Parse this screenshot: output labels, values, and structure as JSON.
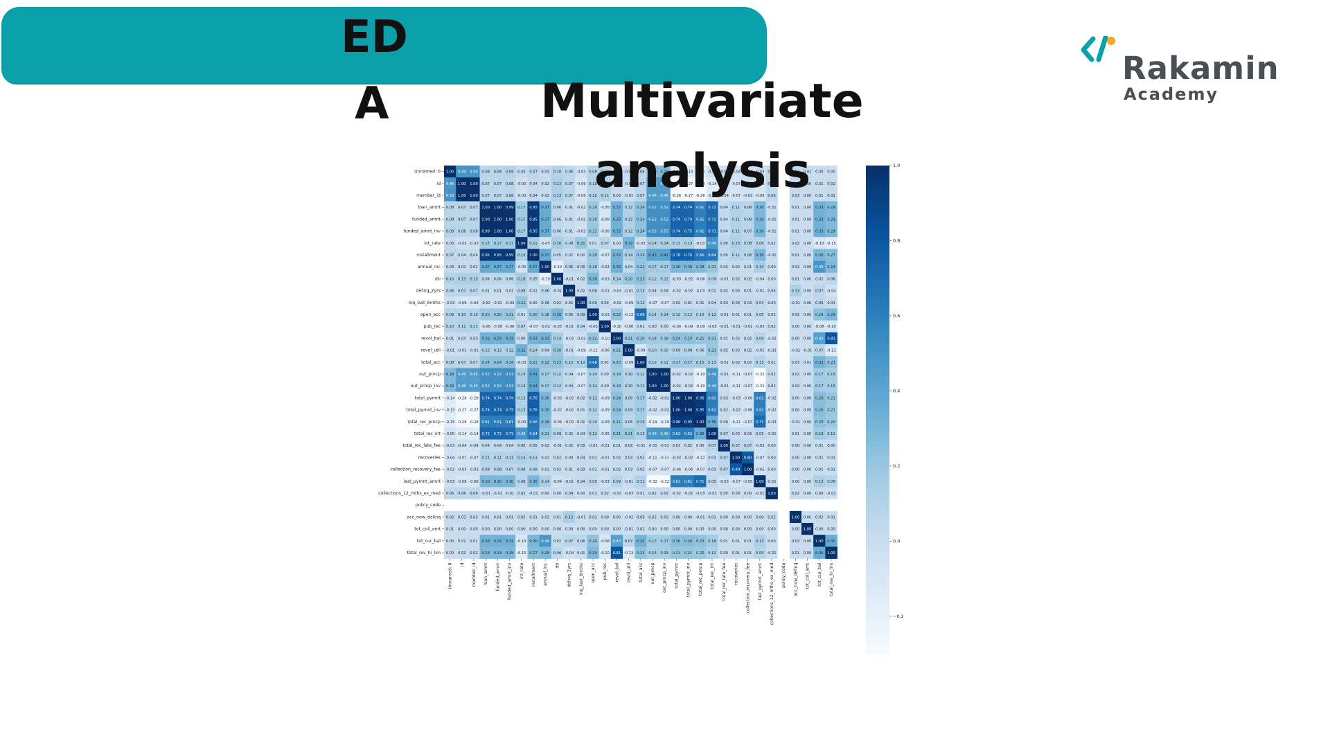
{
  "slide": {
    "title_ed": "ED",
    "title_a": "A",
    "title_multivariate": "Multivariate",
    "title_analysis": "analysis",
    "brand_color": "#0a9fa9"
  },
  "logo": {
    "name": "Rakamin",
    "sub": "Academy",
    "icon": "code-brackets-icon",
    "accent_colors": [
      "#0a9fa9",
      "#f5a623"
    ]
  },
  "chart_data": {
    "type": "heatmap",
    "colormap": "Blues",
    "title": "",
    "xlabel": "",
    "ylabel": "",
    "labels": [
      "Unnamed: 0",
      "id",
      "member_id",
      "loan_amnt",
      "funded_amnt",
      "funded_amnt_inv",
      "int_rate",
      "installment",
      "annual_inc",
      "dti",
      "delinq_2yrs",
      "inq_last_6mths",
      "open_acc",
      "pub_rec",
      "revol_bal",
      "revol_util",
      "total_acc",
      "out_prncp",
      "out_prncp_inv",
      "total_pymnt",
      "total_pymnt_inv",
      "total_rec_prncp",
      "total_rec_int",
      "total_rec_late_fee",
      "recoveries",
      "collection_recovery_fee",
      "last_pymnt_amnt",
      "collections_12_mths_ex_med",
      "policy_code",
      "acc_now_delinq",
      "tot_coll_amt",
      "tot_cur_bal",
      "total_rev_hi_lim"
    ],
    "matrix": [
      [
        1.0,
        0.49,
        0.5,
        0.08,
        0.08,
        0.09,
        0.03,
        0.07,
        0.03,
        0.1,
        0.06,
        -0.03,
        0.09,
        0.1,
        0.01,
        -0.01,
        0.08,
        0.29,
        0.29,
        -0.14,
        -0.13,
        -0.15,
        -0.05,
        -0.03,
        -0.04,
        -0.02,
        -0.03,
        0.05,
        null,
        0.02,
        0.01,
        0.0,
        -0.0
      ],
      [
        0.49,
        1.0,
        1.0,
        0.07,
        0.07,
        0.08,
        -0.03,
        0.04,
        0.02,
        0.13,
        0.07,
        -0.09,
        0.1,
        0.11,
        0.03,
        -0.01,
        0.07,
        0.45,
        0.45,
        -0.28,
        -0.27,
        -0.28,
        -0.14,
        -0.04,
        -0.07,
        -0.03,
        -0.08,
        0.06,
        null,
        0.03,
        0.0,
        0.01,
        0.02
      ],
      [
        0.5,
        1.0,
        1.0,
        0.07,
        0.07,
        0.08,
        -0.03,
        0.04,
        0.02,
        0.13,
        0.07,
        -0.09,
        0.1,
        0.11,
        0.03,
        -0.01,
        0.07,
        0.45,
        0.45,
        -0.28,
        -0.27,
        -0.28,
        -0.14,
        -0.04,
        -0.07,
        -0.03,
        -0.08,
        0.06,
        null,
        0.03,
        0.0,
        0.01,
        0.02
      ],
      [
        0.08,
        0.07,
        0.07,
        1.0,
        1.0,
        0.99,
        0.17,
        0.95,
        0.37,
        0.06,
        0.01,
        -0.02,
        0.2,
        -0.08,
        0.33,
        0.12,
        0.24,
        0.52,
        0.52,
        0.74,
        0.74,
        0.61,
        0.72,
        0.04,
        0.11,
        0.08,
        0.3,
        -0.01,
        null,
        0.01,
        -0.0,
        0.33,
        0.29
      ],
      [
        0.08,
        0.07,
        0.07,
        1.0,
        1.0,
        1.0,
        0.17,
        0.95,
        0.37,
        0.06,
        0.01,
        -0.02,
        0.2,
        -0.08,
        0.33,
        0.12,
        0.24,
        0.52,
        0.52,
        0.74,
        0.74,
        0.61,
        0.72,
        0.04,
        0.11,
        0.08,
        0.3,
        -0.01,
        null,
        0.01,
        -0.0,
        0.33,
        0.29
      ],
      [
        0.09,
        0.08,
        0.08,
        0.99,
        1.0,
        1.0,
        0.17,
        0.95,
        0.37,
        0.06,
        0.01,
        -0.03,
        0.21,
        -0.08,
        0.33,
        0.12,
        0.24,
        0.53,
        0.53,
        0.74,
        0.75,
        0.61,
        0.71,
        0.04,
        0.11,
        0.07,
        0.3,
        -0.01,
        null,
        0.01,
        -0.0,
        0.33,
        0.29
      ],
      [
        0.03,
        -0.03,
        -0.03,
        0.17,
        0.17,
        0.17,
        1.0,
        0.15,
        -0.05,
        0.16,
        0.08,
        0.21,
        0.01,
        0.07,
        -0.0,
        0.32,
        -0.03,
        0.14,
        0.14,
        0.13,
        0.13,
        -0.03,
        0.49,
        0.06,
        0.13,
        0.08,
        0.08,
        0.02,
        null,
        0.02,
        0.0,
        -0.1,
        -0.15
      ],
      [
        0.07,
        0.04,
        0.04,
        0.95,
        0.95,
        0.95,
        0.15,
        1.0,
        0.37,
        0.05,
        0.02,
        0.0,
        0.2,
        -0.07,
        0.32,
        0.14,
        0.22,
        0.41,
        0.41,
        0.76,
        0.76,
        0.66,
        0.64,
        0.05,
        0.11,
        0.08,
        0.3,
        -0.01,
        null,
        0.01,
        -0.0,
        0.3,
        0.27
      ],
      [
        0.03,
        0.02,
        0.02,
        0.37,
        0.37,
        0.37,
        -0.05,
        0.37,
        1.0,
        -0.19,
        0.06,
        0.06,
        0.18,
        -0.02,
        0.33,
        0.04,
        0.22,
        0.17,
        0.17,
        0.3,
        0.3,
        0.28,
        0.21,
        0.02,
        0.02,
        0.01,
        0.14,
        -0.0,
        null,
        0.02,
        0.0,
        0.49,
        0.29
      ],
      [
        0.1,
        0.13,
        0.13,
        0.06,
        0.06,
        0.06,
        0.16,
        0.05,
        -0.19,
        1.0,
        -0.01,
        0.02,
        0.3,
        -0.03,
        0.14,
        0.2,
        0.23,
        0.12,
        0.12,
        -0.03,
        -0.02,
        -0.06,
        0.09,
        -0.01,
        0.02,
        0.02,
        -0.04,
        0.0,
        null,
        0.01,
        -0.0,
        0.02,
        0.06
      ],
      [
        0.06,
        0.07,
        0.07,
        0.01,
        0.01,
        0.01,
        0.08,
        0.02,
        0.06,
        -0.01,
        1.0,
        0.02,
        0.06,
        -0.01,
        -0.03,
        -0.01,
        0.13,
        0.04,
        0.04,
        -0.02,
        -0.02,
        -0.03,
        0.02,
        0.02,
        0.0,
        0.01,
        -0.01,
        0.04,
        null,
        0.13,
        0.0,
        0.07,
        -0.04
      ],
      [
        -0.03,
        -0.09,
        -0.09,
        -0.02,
        -0.02,
        -0.03,
        0.21,
        0.0,
        0.06,
        0.02,
        0.02,
        1.0,
        0.09,
        0.04,
        -0.02,
        -0.09,
        0.12,
        -0.07,
        -0.07,
        0.02,
        0.01,
        0.01,
        0.04,
        0.03,
        0.04,
        0.03,
        0.04,
        -0.0,
        null,
        -0.01,
        0.0,
        0.06,
        0.01
      ],
      [
        0.09,
        0.1,
        0.1,
        0.2,
        0.2,
        0.21,
        0.01,
        0.2,
        0.18,
        0.3,
        0.06,
        0.09,
        1.0,
        -0.03,
        0.22,
        -0.12,
        0.68,
        0.14,
        0.14,
        0.12,
        0.12,
        0.1,
        0.12,
        -0.01,
        0.01,
        0.01,
        0.05,
        0.01,
        null,
        0.02,
        -0.0,
        0.24,
        0.29
      ],
      [
        0.1,
        0.11,
        0.11,
        -0.08,
        -0.08,
        -0.08,
        0.07,
        -0.07,
        -0.02,
        -0.03,
        -0.01,
        0.04,
        -0.03,
        1.0,
        -0.1,
        -0.06,
        0.01,
        0.0,
        0.0,
        -0.09,
        -0.09,
        -0.09,
        -0.05,
        -0.01,
        -0.01,
        -0.01,
        -0.03,
        0.02,
        null,
        0.0,
        0.0,
        -0.08,
        -0.1
      ],
      [
        0.01,
        0.03,
        0.03,
        0.33,
        0.33,
        0.33,
        -0.0,
        0.32,
        0.33,
        0.14,
        -0.03,
        -0.02,
        0.22,
        -0.1,
        1.0,
        0.21,
        0.2,
        0.18,
        0.18,
        0.24,
        0.24,
        0.21,
        0.21,
        0.01,
        0.02,
        0.02,
        0.09,
        -0.02,
        null,
        0.0,
        -0.0,
        0.43,
        0.81
      ],
      [
        -0.01,
        -0.01,
        -0.01,
        0.12,
        0.12,
        0.12,
        0.32,
        0.14,
        0.04,
        0.2,
        -0.01,
        -0.09,
        -0.12,
        -0.06,
        0.21,
        1.0,
        -0.09,
        0.1,
        0.1,
        0.09,
        0.09,
        0.06,
        0.21,
        0.02,
        0.03,
        0.02,
        -0.01,
        -0.03,
        null,
        -0.02,
        -0.01,
        0.07,
        -0.13
      ],
      [
        0.08,
        0.07,
        0.07,
        0.24,
        0.24,
        0.24,
        -0.03,
        0.22,
        0.22,
        0.23,
        0.13,
        0.12,
        0.68,
        0.01,
        0.2,
        -0.09,
        1.0,
        0.12,
        0.12,
        0.17,
        0.17,
        0.15,
        0.13,
        -0.01,
        0.02,
        0.02,
        0.11,
        0.01,
        null,
        0.03,
        0.01,
        0.32,
        0.23
      ],
      [
        0.29,
        0.45,
        0.45,
        0.52,
        0.52,
        0.53,
        0.14,
        0.41,
        0.17,
        0.12,
        0.04,
        -0.07,
        0.14,
        0.0,
        0.18,
        0.1,
        0.12,
        1.0,
        1.0,
        -0.02,
        -0.02,
        -0.19,
        0.49,
        -0.01,
        -0.11,
        -0.07,
        -0.32,
        0.02,
        null,
        0.02,
        -0.0,
        0.17,
        0.15
      ],
      [
        0.29,
        0.45,
        0.45,
        0.52,
        0.52,
        0.53,
        0.14,
        0.41,
        0.17,
        0.12,
        0.04,
        -0.07,
        0.14,
        0.0,
        0.18,
        0.1,
        0.12,
        1.0,
        1.0,
        -0.02,
        -0.02,
        -0.19,
        0.49,
        -0.01,
        -0.11,
        -0.07,
        -0.32,
        0.02,
        null,
        0.02,
        -0.0,
        0.17,
        0.15
      ],
      [
        -0.14,
        -0.28,
        -0.28,
        0.74,
        0.74,
        0.74,
        0.13,
        0.76,
        0.3,
        -0.03,
        -0.02,
        0.02,
        0.12,
        -0.09,
        0.24,
        0.09,
        0.17,
        -0.02,
        -0.02,
        1.0,
        1.0,
        0.96,
        0.62,
        0.03,
        -0.03,
        -0.06,
        0.61,
        -0.02,
        null,
        -0.0,
        -0.0,
        0.26,
        0.21
      ],
      [
        -0.13,
        -0.27,
        -0.27,
        0.74,
        0.74,
        0.75,
        0.13,
        0.76,
        0.3,
        -0.02,
        -0.02,
        0.01,
        0.12,
        -0.09,
        0.24,
        0.09,
        0.17,
        -0.02,
        -0.02,
        1.0,
        1.0,
        0.95,
        0.62,
        0.02,
        -0.02,
        -0.06,
        0.61,
        -0.02,
        null,
        -0.0,
        -0.0,
        0.26,
        0.21
      ],
      [
        -0.15,
        -0.28,
        -0.28,
        0.61,
        0.61,
        0.61,
        -0.03,
        0.66,
        0.28,
        -0.06,
        -0.03,
        0.01,
        0.1,
        -0.09,
        0.21,
        0.06,
        0.15,
        -0.19,
        -0.19,
        0.96,
        0.95,
        1.0,
        0.36,
        -0.0,
        -0.12,
        -0.07,
        0.71,
        -0.03,
        null,
        -0.01,
        -0.0,
        0.23,
        0.2
      ],
      [
        -0.05,
        -0.14,
        -0.14,
        0.72,
        0.72,
        0.71,
        0.49,
        0.64,
        0.21,
        0.09,
        0.02,
        0.04,
        0.12,
        -0.05,
        0.21,
        0.21,
        0.13,
        0.49,
        0.49,
        0.62,
        0.62,
        0.36,
        1.0,
        0.07,
        0.03,
        0.03,
        0.05,
        -0.01,
        null,
        0.01,
        -0.0,
        0.18,
        0.12
      ],
      [
        -0.03,
        -0.04,
        -0.04,
        0.04,
        0.04,
        0.04,
        0.06,
        0.05,
        0.02,
        -0.01,
        0.02,
        0.03,
        -0.01,
        -0.01,
        0.01,
        0.02,
        -0.01,
        -0.01,
        -0.01,
        0.03,
        0.02,
        -0.0,
        0.07,
        1.0,
        0.07,
        0.07,
        -0.03,
        -0.0,
        null,
        0.0,
        -0.0,
        0.01,
        -0.0
      ],
      [
        -0.04,
        -0.07,
        -0.07,
        0.11,
        0.11,
        0.11,
        0.13,
        0.11,
        0.02,
        0.02,
        0.0,
        0.04,
        0.01,
        -0.01,
        0.02,
        0.03,
        0.02,
        -0.11,
        -0.11,
        -0.03,
        -0.02,
        -0.12,
        0.03,
        0.07,
        1.0,
        0.8,
        -0.07,
        -0.0,
        null,
        0.0,
        -0.0,
        0.01,
        0.01
      ],
      [
        -0.02,
        -0.03,
        -0.03,
        0.08,
        0.08,
        0.07,
        0.08,
        0.08,
        0.01,
        0.02,
        0.01,
        0.03,
        0.01,
        -0.01,
        0.02,
        0.02,
        0.02,
        -0.07,
        -0.07,
        -0.06,
        -0.06,
        -0.07,
        0.03,
        0.07,
        0.8,
        1.0,
        -0.05,
        -0.0,
        null,
        0.0,
        -0.0,
        0.01,
        0.01
      ],
      [
        -0.03,
        -0.08,
        -0.08,
        0.3,
        0.3,
        0.3,
        0.08,
        0.3,
        0.14,
        -0.04,
        -0.01,
        0.04,
        0.05,
        -0.03,
        0.09,
        -0.01,
        0.11,
        -0.32,
        -0.32,
        0.61,
        0.61,
        0.71,
        0.05,
        -0.03,
        -0.07,
        -0.05,
        1.0,
        -0.01,
        null,
        -0.0,
        -0.0,
        0.13,
        0.09
      ],
      [
        0.05,
        0.06,
        0.06,
        -0.01,
        -0.01,
        -0.01,
        0.02,
        -0.01,
        -0.0,
        0.0,
        0.04,
        -0.0,
        0.01,
        0.02,
        -0.02,
        -0.03,
        0.01,
        0.02,
        0.02,
        -0.02,
        -0.02,
        -0.03,
        -0.01,
        -0.0,
        -0.0,
        -0.0,
        -0.01,
        1.0,
        null,
        0.02,
        0.0,
        -0.0,
        -0.01
      ],
      [
        null,
        null,
        null,
        null,
        null,
        null,
        null,
        null,
        null,
        null,
        null,
        null,
        null,
        null,
        null,
        null,
        null,
        null,
        null,
        null,
        null,
        null,
        null,
        null,
        null,
        null,
        null,
        null,
        null,
        null,
        null,
        null,
        null
      ],
      [
        0.02,
        0.03,
        0.03,
        0.01,
        0.01,
        0.01,
        0.02,
        0.01,
        0.02,
        0.01,
        0.13,
        -0.01,
        0.02,
        0.0,
        0.0,
        -0.02,
        0.03,
        0.02,
        0.02,
        -0.0,
        -0.0,
        -0.01,
        0.01,
        0.0,
        0.0,
        0.0,
        -0.0,
        0.02,
        null,
        1.0,
        -0.0,
        0.02,
        0.01
      ],
      [
        0.01,
        0.0,
        0.0,
        -0.0,
        -0.0,
        -0.0,
        0.0,
        -0.0,
        0.0,
        -0.0,
        0.0,
        0.0,
        -0.0,
        0.0,
        -0.0,
        -0.01,
        0.01,
        -0.0,
        -0.0,
        -0.0,
        -0.0,
        -0.0,
        -0.0,
        -0.0,
        -0.0,
        -0.0,
        -0.0,
        0.0,
        null,
        -0.0,
        1.0,
        0.0,
        -0.0
      ],
      [
        0.0,
        0.01,
        0.01,
        0.33,
        0.33,
        0.33,
        -0.1,
        0.3,
        0.49,
        0.02,
        0.07,
        0.06,
        0.24,
        -0.08,
        0.43,
        0.07,
        0.32,
        0.17,
        0.17,
        0.26,
        0.26,
        0.23,
        0.18,
        0.01,
        0.01,
        0.01,
        0.13,
        -0.0,
        null,
        0.02,
        0.0,
        1.0,
        0.36
      ],
      [
        -0.0,
        0.02,
        0.02,
        0.29,
        0.29,
        0.29,
        -0.15,
        0.27,
        0.29,
        0.06,
        -0.04,
        0.01,
        0.29,
        -0.1,
        0.81,
        -0.13,
        0.23,
        0.15,
        0.15,
        0.21,
        0.21,
        0.2,
        0.12,
        -0.0,
        0.01,
        0.01,
        0.09,
        -0.01,
        null,
        0.01,
        -0.0,
        0.36,
        1.0
      ]
    ],
    "color_range": [
      -0.3,
      1.0
    ],
    "colorbar_ticks": [
      1.0,
      0.8,
      0.6,
      0.4,
      0.2,
      0.0,
      -0.2
    ]
  }
}
